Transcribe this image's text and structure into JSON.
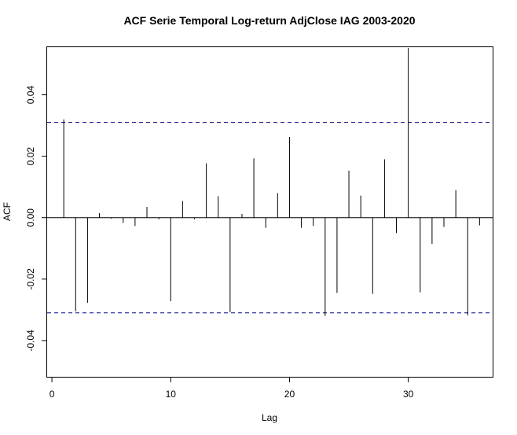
{
  "chart_data": {
    "type": "bar",
    "title": "ACF Serie Temporal Log-return AdjClose IAG 2003-2020",
    "xlabel": "Lag",
    "ylabel": "ACF",
    "xlim": [
      -0.4,
      37.1
    ],
    "ylim": [
      -0.0518,
      0.0555
    ],
    "x_ticks": [
      0,
      10,
      20,
      30
    ],
    "y_ticks": [
      -0.04,
      -0.02,
      0.0,
      0.02,
      0.04
    ],
    "y_tick_labels": [
      "-0.04",
      "-0.02",
      "0.00",
      "0.02",
      "0.04"
    ],
    "confidence_bound": 0.031,
    "confidence_color": "#00008b",
    "lags": [
      1,
      2,
      3,
      4,
      5,
      6,
      7,
      8,
      9,
      10,
      11,
      12,
      13,
      14,
      15,
      16,
      17,
      18,
      19,
      20,
      21,
      22,
      23,
      24,
      25,
      26,
      27,
      28,
      29,
      30,
      31,
      32,
      33,
      34,
      35,
      36
    ],
    "values": [
      0.032,
      -0.0305,
      -0.0277,
      0.0015,
      -0.0003,
      -0.0017,
      -0.0027,
      0.0035,
      -0.0005,
      -0.0272,
      0.0054,
      -0.0005,
      0.0177,
      0.007,
      -0.0308,
      0.0012,
      0.0193,
      -0.0033,
      0.008,
      0.0263,
      -0.0033,
      -0.0027,
      -0.032,
      -0.0245,
      0.0153,
      0.0072,
      -0.0248,
      0.019,
      -0.005,
      0.0552,
      -0.0243,
      -0.0085,
      -0.003,
      0.009,
      -0.0318,
      -0.0025
    ]
  }
}
